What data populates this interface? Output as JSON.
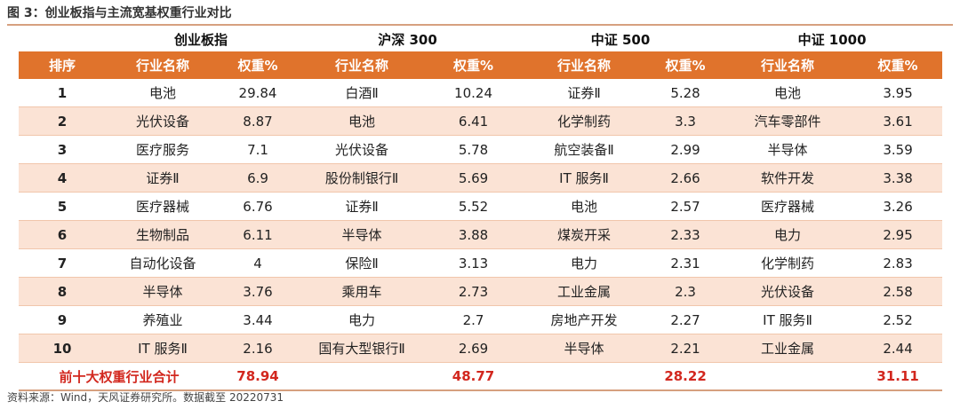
{
  "figure_title": "图 3：创业板指与主流宽基权重行业对比",
  "groups": [
    "创业板指",
    "沪深 300",
    "中证 500",
    "中证 1000"
  ],
  "headers": {
    "rank": "排序",
    "industry": "行业名称",
    "weight": "权重%"
  },
  "rows": [
    {
      "rank": "1",
      "cells": [
        [
          "电池",
          "29.84"
        ],
        [
          "白酒Ⅱ",
          "10.24"
        ],
        [
          "证券Ⅱ",
          "5.28"
        ],
        [
          "电池",
          "3.95"
        ]
      ]
    },
    {
      "rank": "2",
      "cells": [
        [
          "光伏设备",
          "8.87"
        ],
        [
          "电池",
          "6.41"
        ],
        [
          "化学制药",
          "3.3"
        ],
        [
          "汽车零部件",
          "3.61"
        ]
      ]
    },
    {
      "rank": "3",
      "cells": [
        [
          "医疗服务",
          "7.1"
        ],
        [
          "光伏设备",
          "5.78"
        ],
        [
          "航空装备Ⅱ",
          "2.99"
        ],
        [
          "半导体",
          "3.59"
        ]
      ]
    },
    {
      "rank": "4",
      "cells": [
        [
          "证券Ⅱ",
          "6.9"
        ],
        [
          "股份制银行Ⅱ",
          "5.69"
        ],
        [
          "IT 服务Ⅱ",
          "2.66"
        ],
        [
          "软件开发",
          "3.38"
        ]
      ]
    },
    {
      "rank": "5",
      "cells": [
        [
          "医疗器械",
          "6.76"
        ],
        [
          "证券Ⅱ",
          "5.52"
        ],
        [
          "电池",
          "2.57"
        ],
        [
          "医疗器械",
          "3.26"
        ]
      ]
    },
    {
      "rank": "6",
      "cells": [
        [
          "生物制品",
          "6.11"
        ],
        [
          "半导体",
          "3.88"
        ],
        [
          "煤炭开采",
          "2.33"
        ],
        [
          "电力",
          "2.95"
        ]
      ]
    },
    {
      "rank": "7",
      "cells": [
        [
          "自动化设备",
          "4"
        ],
        [
          "保险Ⅱ",
          "3.13"
        ],
        [
          "电力",
          "2.31"
        ],
        [
          "化学制药",
          "2.83"
        ]
      ]
    },
    {
      "rank": "8",
      "cells": [
        [
          "半导体",
          "3.76"
        ],
        [
          "乘用车",
          "2.73"
        ],
        [
          "工业金属",
          "2.3"
        ],
        [
          "光伏设备",
          "2.58"
        ]
      ]
    },
    {
      "rank": "9",
      "cells": [
        [
          "养殖业",
          "3.44"
        ],
        [
          "电力",
          "2.7"
        ],
        [
          "房地产开发",
          "2.27"
        ],
        [
          "IT 服务Ⅱ",
          "2.52"
        ]
      ]
    },
    {
      "rank": "10",
      "cells": [
        [
          "IT 服务Ⅱ",
          "2.16"
        ],
        [
          "国有大型银行Ⅱ",
          "2.69"
        ],
        [
          "半导体",
          "2.21"
        ],
        [
          "工业金属",
          "2.44"
        ]
      ]
    }
  ],
  "total": {
    "label": "前十大权重行业合计",
    "values": [
      "78.94",
      "48.77",
      "28.22",
      "31.11"
    ]
  },
  "source": "资料来源：Wind，天风证券研究所。数据截至 20220731",
  "colors": {
    "header_bg": "#e0732c",
    "row_shade": "#fbe3d5",
    "total_text": "#d2271e"
  }
}
